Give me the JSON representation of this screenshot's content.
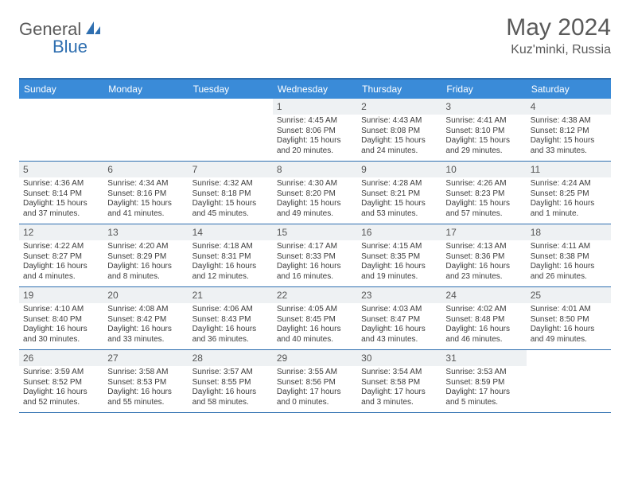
{
  "logo": {
    "part1": "General",
    "part2": "Blue"
  },
  "title": "May 2024",
  "location": "Kuz'minki, Russia",
  "weekdays": [
    "Sunday",
    "Monday",
    "Tuesday",
    "Wednesday",
    "Thursday",
    "Friday",
    "Saturday"
  ],
  "colors": {
    "header_bar": "#3a8bd8",
    "rule": "#2f6fb0",
    "daynum_bg": "#eef1f3",
    "text": "#3c3c3c",
    "title_text": "#5a5a5a"
  },
  "weeks": [
    [
      {
        "n": "",
        "sr": "",
        "ss": "",
        "dl": ""
      },
      {
        "n": "",
        "sr": "",
        "ss": "",
        "dl": ""
      },
      {
        "n": "",
        "sr": "",
        "ss": "",
        "dl": ""
      },
      {
        "n": "1",
        "sr": "Sunrise: 4:45 AM",
        "ss": "Sunset: 8:06 PM",
        "dl": "Daylight: 15 hours and 20 minutes."
      },
      {
        "n": "2",
        "sr": "Sunrise: 4:43 AM",
        "ss": "Sunset: 8:08 PM",
        "dl": "Daylight: 15 hours and 24 minutes."
      },
      {
        "n": "3",
        "sr": "Sunrise: 4:41 AM",
        "ss": "Sunset: 8:10 PM",
        "dl": "Daylight: 15 hours and 29 minutes."
      },
      {
        "n": "4",
        "sr": "Sunrise: 4:38 AM",
        "ss": "Sunset: 8:12 PM",
        "dl": "Daylight: 15 hours and 33 minutes."
      }
    ],
    [
      {
        "n": "5",
        "sr": "Sunrise: 4:36 AM",
        "ss": "Sunset: 8:14 PM",
        "dl": "Daylight: 15 hours and 37 minutes."
      },
      {
        "n": "6",
        "sr": "Sunrise: 4:34 AM",
        "ss": "Sunset: 8:16 PM",
        "dl": "Daylight: 15 hours and 41 minutes."
      },
      {
        "n": "7",
        "sr": "Sunrise: 4:32 AM",
        "ss": "Sunset: 8:18 PM",
        "dl": "Daylight: 15 hours and 45 minutes."
      },
      {
        "n": "8",
        "sr": "Sunrise: 4:30 AM",
        "ss": "Sunset: 8:20 PM",
        "dl": "Daylight: 15 hours and 49 minutes."
      },
      {
        "n": "9",
        "sr": "Sunrise: 4:28 AM",
        "ss": "Sunset: 8:21 PM",
        "dl": "Daylight: 15 hours and 53 minutes."
      },
      {
        "n": "10",
        "sr": "Sunrise: 4:26 AM",
        "ss": "Sunset: 8:23 PM",
        "dl": "Daylight: 15 hours and 57 minutes."
      },
      {
        "n": "11",
        "sr": "Sunrise: 4:24 AM",
        "ss": "Sunset: 8:25 PM",
        "dl": "Daylight: 16 hours and 1 minute."
      }
    ],
    [
      {
        "n": "12",
        "sr": "Sunrise: 4:22 AM",
        "ss": "Sunset: 8:27 PM",
        "dl": "Daylight: 16 hours and 4 minutes."
      },
      {
        "n": "13",
        "sr": "Sunrise: 4:20 AM",
        "ss": "Sunset: 8:29 PM",
        "dl": "Daylight: 16 hours and 8 minutes."
      },
      {
        "n": "14",
        "sr": "Sunrise: 4:18 AM",
        "ss": "Sunset: 8:31 PM",
        "dl": "Daylight: 16 hours and 12 minutes."
      },
      {
        "n": "15",
        "sr": "Sunrise: 4:17 AM",
        "ss": "Sunset: 8:33 PM",
        "dl": "Daylight: 16 hours and 16 minutes."
      },
      {
        "n": "16",
        "sr": "Sunrise: 4:15 AM",
        "ss": "Sunset: 8:35 PM",
        "dl": "Daylight: 16 hours and 19 minutes."
      },
      {
        "n": "17",
        "sr": "Sunrise: 4:13 AM",
        "ss": "Sunset: 8:36 PM",
        "dl": "Daylight: 16 hours and 23 minutes."
      },
      {
        "n": "18",
        "sr": "Sunrise: 4:11 AM",
        "ss": "Sunset: 8:38 PM",
        "dl": "Daylight: 16 hours and 26 minutes."
      }
    ],
    [
      {
        "n": "19",
        "sr": "Sunrise: 4:10 AM",
        "ss": "Sunset: 8:40 PM",
        "dl": "Daylight: 16 hours and 30 minutes."
      },
      {
        "n": "20",
        "sr": "Sunrise: 4:08 AM",
        "ss": "Sunset: 8:42 PM",
        "dl": "Daylight: 16 hours and 33 minutes."
      },
      {
        "n": "21",
        "sr": "Sunrise: 4:06 AM",
        "ss": "Sunset: 8:43 PM",
        "dl": "Daylight: 16 hours and 36 minutes."
      },
      {
        "n": "22",
        "sr": "Sunrise: 4:05 AM",
        "ss": "Sunset: 8:45 PM",
        "dl": "Daylight: 16 hours and 40 minutes."
      },
      {
        "n": "23",
        "sr": "Sunrise: 4:03 AM",
        "ss": "Sunset: 8:47 PM",
        "dl": "Daylight: 16 hours and 43 minutes."
      },
      {
        "n": "24",
        "sr": "Sunrise: 4:02 AM",
        "ss": "Sunset: 8:48 PM",
        "dl": "Daylight: 16 hours and 46 minutes."
      },
      {
        "n": "25",
        "sr": "Sunrise: 4:01 AM",
        "ss": "Sunset: 8:50 PM",
        "dl": "Daylight: 16 hours and 49 minutes."
      }
    ],
    [
      {
        "n": "26",
        "sr": "Sunrise: 3:59 AM",
        "ss": "Sunset: 8:52 PM",
        "dl": "Daylight: 16 hours and 52 minutes."
      },
      {
        "n": "27",
        "sr": "Sunrise: 3:58 AM",
        "ss": "Sunset: 8:53 PM",
        "dl": "Daylight: 16 hours and 55 minutes."
      },
      {
        "n": "28",
        "sr": "Sunrise: 3:57 AM",
        "ss": "Sunset: 8:55 PM",
        "dl": "Daylight: 16 hours and 58 minutes."
      },
      {
        "n": "29",
        "sr": "Sunrise: 3:55 AM",
        "ss": "Sunset: 8:56 PM",
        "dl": "Daylight: 17 hours and 0 minutes."
      },
      {
        "n": "30",
        "sr": "Sunrise: 3:54 AM",
        "ss": "Sunset: 8:58 PM",
        "dl": "Daylight: 17 hours and 3 minutes."
      },
      {
        "n": "31",
        "sr": "Sunrise: 3:53 AM",
        "ss": "Sunset: 8:59 PM",
        "dl": "Daylight: 17 hours and 5 minutes."
      },
      {
        "n": "",
        "sr": "",
        "ss": "",
        "dl": ""
      }
    ]
  ]
}
